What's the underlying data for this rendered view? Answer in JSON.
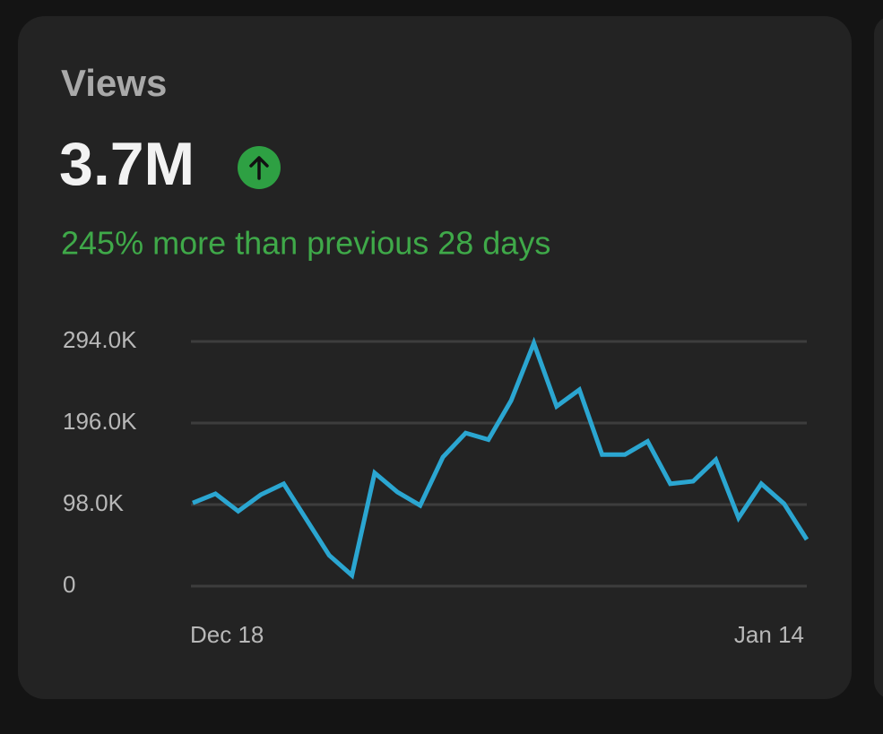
{
  "card": {
    "title": "Views",
    "total": "3.7M",
    "change": "245% more than previous 28 days"
  },
  "chart_data": {
    "type": "line",
    "categories": [
      "Dec 18",
      null,
      null,
      null,
      null,
      null,
      null,
      null,
      null,
      null,
      null,
      null,
      null,
      null,
      null,
      null,
      null,
      null,
      null,
      null,
      null,
      null,
      null,
      null,
      null,
      null,
      null,
      "Jan 14"
    ],
    "series": [
      {
        "color": "#2ba6d1",
        "values": [
          100000,
          111000,
          90000,
          110000,
          123000,
          80000,
          37000,
          13000,
          136000,
          113000,
          97000,
          155000,
          184000,
          176000,
          223000,
          292000,
          216000,
          236000,
          158000,
          158000,
          174000,
          123000,
          126000,
          152000,
          82000,
          123000,
          99000,
          56000
        ]
      }
    ],
    "ylim": [
      0,
      294000
    ],
    "yticks": [
      0,
      {
        "value": 98000,
        "label": "98.0K"
      },
      {
        "value": 196000,
        "label": "196.0K"
      },
      {
        "value": 294000,
        "label": "294.0K"
      }
    ],
    "grid": true
  }
}
